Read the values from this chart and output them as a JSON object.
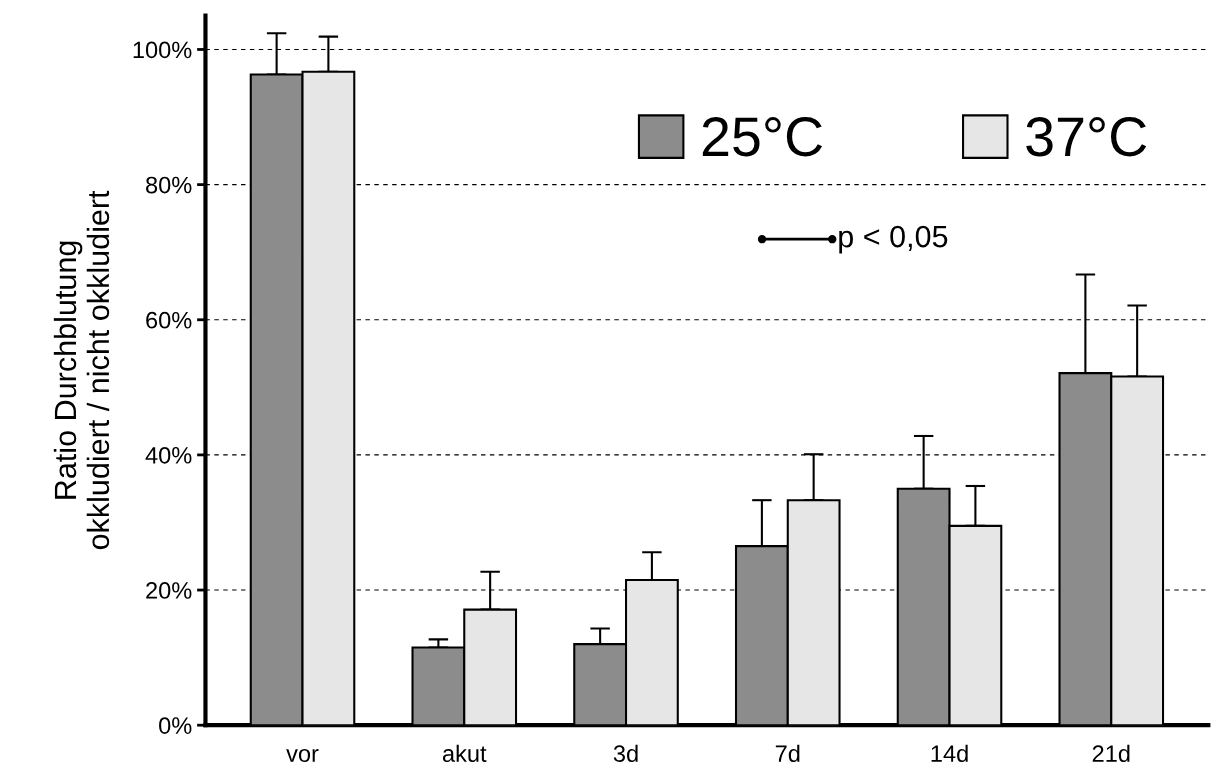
{
  "chart_data": {
    "type": "bar",
    "ylabel": "Ratio Durchblutung\nokkludiert / nicht okkludiert",
    "categories": [
      "vor",
      "akut",
      "3d",
      "7d",
      "14d",
      "21d"
    ],
    "series": [
      {
        "name": "25°C",
        "color": "#8c8c8c",
        "values": [
          96.3,
          11.5,
          12.0,
          26.5,
          35.0,
          52.1
        ],
        "errors": [
          [
            96.3,
            102.4
          ],
          [
            11.5,
            12.7
          ],
          [
            12.0,
            14.3
          ],
          [
            26.5,
            33.3
          ],
          [
            35.0,
            42.8
          ],
          [
            52.1,
            66.7
          ]
        ]
      },
      {
        "name": "37°C",
        "color": "#e6e6e6",
        "values": [
          96.7,
          17.1,
          21.5,
          33.3,
          29.5,
          51.6
        ],
        "errors": [
          [
            96.7,
            101.9
          ],
          [
            17.1,
            22.7
          ],
          [
            21.5,
            25.6
          ],
          [
            33.3,
            40.1
          ],
          [
            29.5,
            35.4
          ],
          [
            51.6,
            62.1
          ]
        ]
      }
    ],
    "ylim": [
      0,
      105
    ],
    "yticks": [
      {
        "value": 0,
        "label": "0%"
      },
      {
        "value": 20,
        "label": "20%"
      },
      {
        "value": 40,
        "label": "40%"
      },
      {
        "value": 60,
        "label": "60%"
      },
      {
        "value": 80,
        "label": "80%"
      },
      {
        "value": 100,
        "label": "100%"
      }
    ],
    "grid": "y",
    "legend": "top right",
    "annotations": [
      "p < 0,05"
    ]
  }
}
